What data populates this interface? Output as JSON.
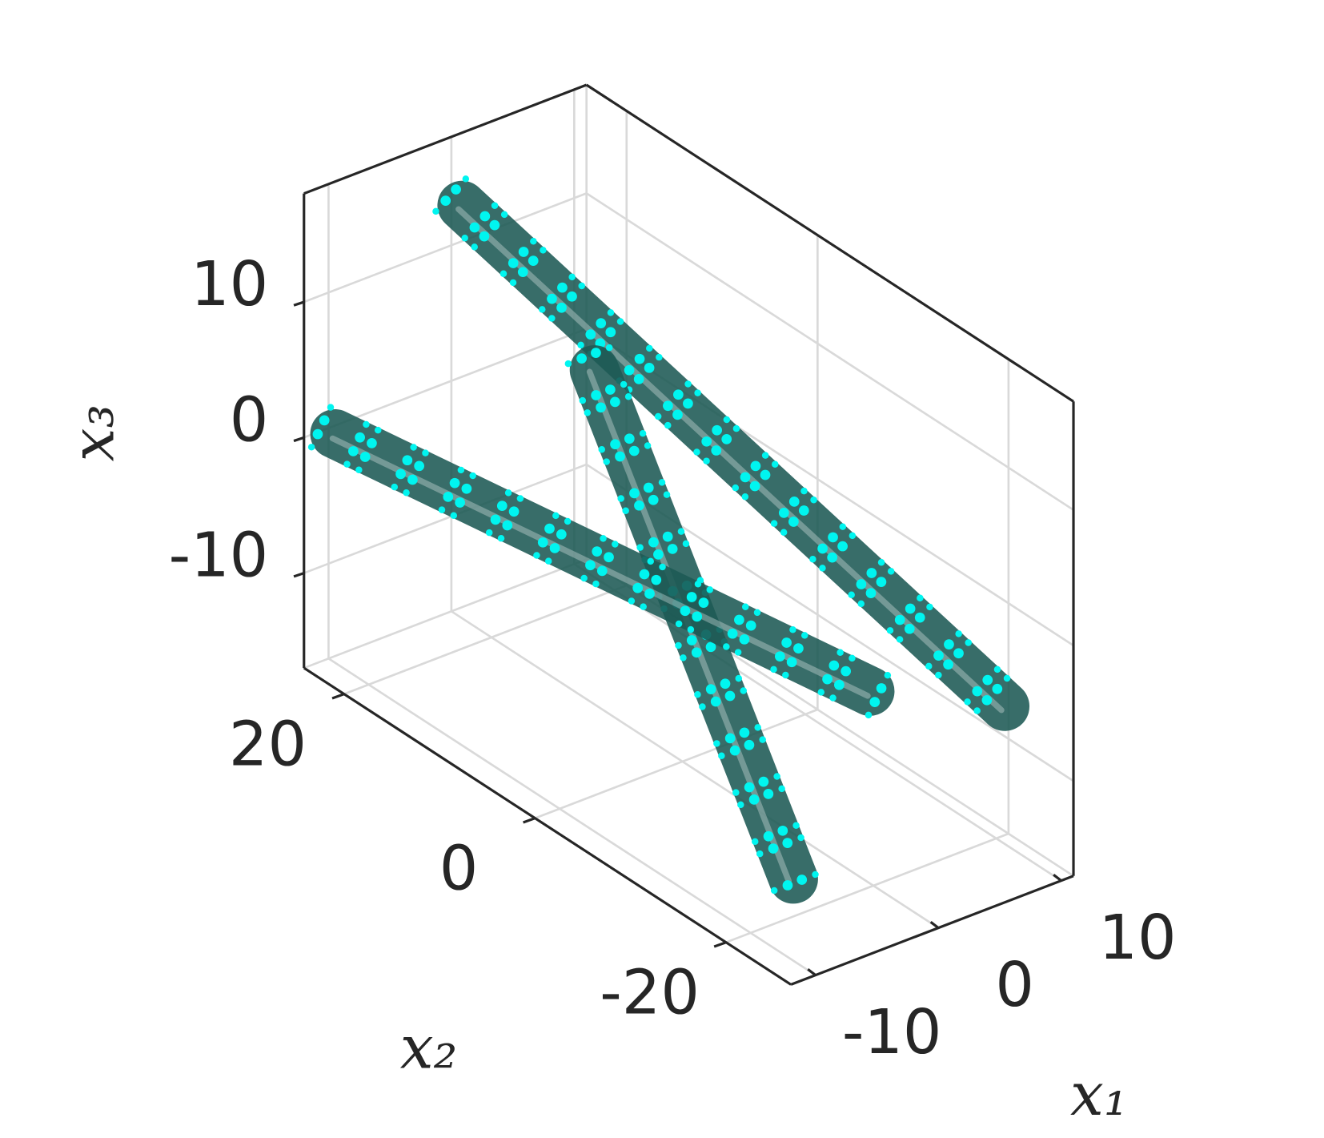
{
  "chart_data": {
    "type": "tube3d",
    "x1_label": "x₁",
    "x2_label": "x₂",
    "x3_label": "x₃",
    "x1lim": [
      -12,
      11
    ],
    "x1ticks": [
      -10,
      0,
      10
    ],
    "x2lim": [
      -26.8,
      24.2
    ],
    "x2ticks": [
      -20,
      0,
      20
    ],
    "x3lim": [
      -17,
      18
    ],
    "x3ticks": [
      -10,
      0,
      10
    ],
    "grid": true,
    "point_color": "#00f5f0",
    "series": [
      {
        "color": "#1d5a55",
        "x1": [
          -2.4,
          10.7
        ],
        "x2": [
          20,
          -20
        ],
        "x3": [
          15.7,
          -7.5
        ]
      },
      {
        "color": "#1d5a55",
        "x1": [
          0.6,
          -10.4
        ],
        "x2": [
          10,
          -25
        ],
        "x3": [
          7.1,
          -10.6
        ]
      },
      {
        "color": "#1d5a55",
        "x1": [
          -11.2,
          3.6
        ],
        "x2": [
          22,
          -15
        ],
        "x3": [
          1.0,
          -6.2
        ]
      }
    ]
  }
}
